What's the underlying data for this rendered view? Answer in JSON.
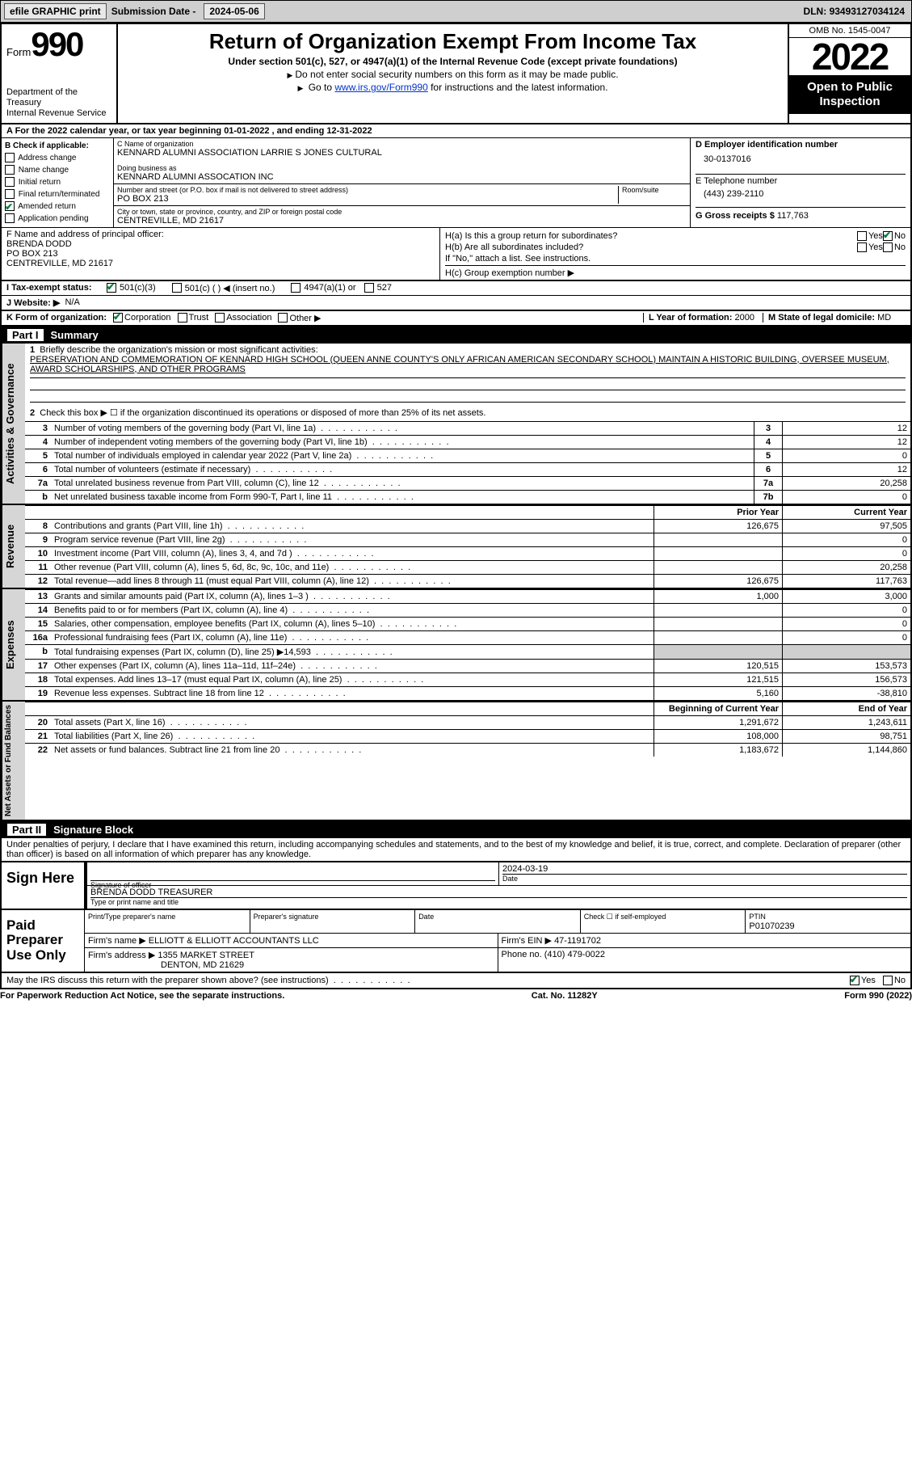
{
  "banner": {
    "efile": "efile GRAPHIC print",
    "sub_lbl": "Submission Date -",
    "sub_val": "2024-05-06",
    "dln_lbl": "DLN:",
    "dln_val": "93493127034124"
  },
  "header": {
    "form_lbl": "Form",
    "form_no": "990",
    "dept": "Department of the Treasury\nInternal Revenue Service",
    "title": "Return of Organization Exempt From Income Tax",
    "sub": "Under section 501(c), 527, or 4947(a)(1) of the Internal Revenue Code (except private foundations)",
    "line1": "Do not enter social security numbers on this form as it may be made public.",
    "line2_pre": "Go to ",
    "line2_link": "www.irs.gov/Form990",
    "line2_post": " for instructions and the latest information.",
    "omb": "OMB No. 1545-0047",
    "year": "2022",
    "pub": "Open to Public Inspection"
  },
  "lineA": "A For the 2022 calendar year, or tax year beginning 01-01-2022    , and ending 12-31-2022",
  "boxB": {
    "label": "B Check if applicable:",
    "items": [
      "Address change",
      "Name change",
      "Initial return",
      "Final return/terminated",
      "Amended return",
      "Application pending"
    ],
    "checked_idx": 4
  },
  "boxC": {
    "name_lbl": "C Name of organization",
    "name": "KENNARD ALUMNI ASSOCIATION LARRIE S JONES CULTURAL",
    "dba_lbl": "Doing business as",
    "dba": "KENNARD ALUMNI ASSOCATION INC",
    "street_lbl": "Number and street (or P.O. box if mail is not delivered to street address)",
    "room_lbl": "Room/suite",
    "street": "PO BOX 213",
    "city_lbl": "City or town, state or province, country, and ZIP or foreign postal code",
    "city": "CENTREVILLE, MD  21617"
  },
  "boxD": {
    "lbl": "D Employer identification number",
    "val": "30-0137016"
  },
  "boxE": {
    "lbl": "E Telephone number",
    "val": "(443) 239-2110"
  },
  "boxG": {
    "lbl": "G Gross receipts $",
    "val": "117,763"
  },
  "boxF": {
    "lbl": "F  Name and address of principal officer:",
    "name": "BRENDA DODD",
    "street": "PO BOX 213",
    "city": "CENTREVILLE, MD  21617"
  },
  "boxH": {
    "a_lbl": "H(a)  Is this a group return for subordinates?",
    "b_lbl": "H(b)  Are all subordinates included?",
    "b_note": "If \"No,\" attach a list. See instructions.",
    "c_lbl": "H(c)  Group exemption number ▶",
    "yes": "Yes",
    "no": "No"
  },
  "lineI": {
    "lbl": "I     Tax-exempt status:",
    "opts": [
      "501(c)(3)",
      "501(c) (  ) ◀ (insert no.)",
      "4947(a)(1) or",
      "527"
    ]
  },
  "lineJ": {
    "lbl": "J    Website: ▶",
    "val": "N/A"
  },
  "lineK": {
    "lbl": "K Form of organization:",
    "opts": [
      "Corporation",
      "Trust",
      "Association",
      "Other ▶"
    ]
  },
  "lineL": {
    "lbl": "L Year of formation:",
    "val": "2000"
  },
  "lineM": {
    "lbl": "M State of legal domicile:",
    "val": "MD"
  },
  "part1": {
    "hdr": "Part I",
    "title": "Summary"
  },
  "gov": {
    "side": "Activities & Governance",
    "l1_lbl": "Briefly describe the organization's mission or most significant activities:",
    "l1_txt": "PERSERVATION AND COMMEMORATION OF KENNARD HIGH SCHOOL (QUEEN ANNE COUNTY'S ONLY AFRICAN AMERICAN SECONDARY SCHOOL) MAINTAIN A HISTORIC BUILDING, OVERSEE MUSEUM, AWARD SCHOLARSHIPS, AND OTHER PROGRAMS",
    "l2": "Check this box ▶ ☐  if the organization discontinued its operations or disposed of more than 25% of its net assets.",
    "rows": [
      {
        "n": "3",
        "t": "Number of voting members of the governing body (Part VI, line 1a)",
        "box": "3",
        "v": "12"
      },
      {
        "n": "4",
        "t": "Number of independent voting members of the governing body (Part VI, line 1b)",
        "box": "4",
        "v": "12"
      },
      {
        "n": "5",
        "t": "Total number of individuals employed in calendar year 2022 (Part V, line 2a)",
        "box": "5",
        "v": "0"
      },
      {
        "n": "6",
        "t": "Total number of volunteers (estimate if necessary)",
        "box": "6",
        "v": "12"
      },
      {
        "n": "7a",
        "t": "Total unrelated business revenue from Part VIII, column (C), line 12",
        "box": "7a",
        "v": "20,258"
      },
      {
        "n": " b",
        "t": "Net unrelated business taxable income from Form 990-T, Part I, line 11",
        "box": "7b",
        "v": "0"
      }
    ]
  },
  "colhdrs": {
    "prior": "Prior Year",
    "curr": "Current Year",
    "begin": "Beginning of Current Year",
    "end": "End of Year"
  },
  "rev": {
    "side": "Revenue",
    "rows": [
      {
        "n": "8",
        "t": "Contributions and grants (Part VIII, line 1h)",
        "p": "126,675",
        "c": "97,505"
      },
      {
        "n": "9",
        "t": "Program service revenue (Part VIII, line 2g)",
        "p": "",
        "c": "0"
      },
      {
        "n": "10",
        "t": "Investment income (Part VIII, column (A), lines 3, 4, and 7d )",
        "p": "",
        "c": "0"
      },
      {
        "n": "11",
        "t": "Other revenue (Part VIII, column (A), lines 5, 6d, 8c, 9c, 10c, and 11e)",
        "p": "",
        "c": "20,258"
      },
      {
        "n": "12",
        "t": "Total revenue—add lines 8 through 11 (must equal Part VIII, column (A), line 12)",
        "p": "126,675",
        "c": "117,763"
      }
    ]
  },
  "exp": {
    "side": "Expenses",
    "rows": [
      {
        "n": "13",
        "t": "Grants and similar amounts paid (Part IX, column (A), lines 1–3 )",
        "p": "1,000",
        "c": "3,000"
      },
      {
        "n": "14",
        "t": "Benefits paid to or for members (Part IX, column (A), line 4)",
        "p": "",
        "c": "0"
      },
      {
        "n": "15",
        "t": "Salaries, other compensation, employee benefits (Part IX, column (A), lines 5–10)",
        "p": "",
        "c": "0"
      },
      {
        "n": "16a",
        "t": "Professional fundraising fees (Part IX, column (A), line 11e)",
        "p": "",
        "c": "0"
      },
      {
        "n": "b",
        "t": "Total fundraising expenses (Part IX, column (D), line 25) ▶14,593",
        "p": "GREY",
        "c": "GREY"
      },
      {
        "n": "17",
        "t": "Other expenses (Part IX, column (A), lines 11a–11d, 11f–24e)",
        "p": "120,515",
        "c": "153,573"
      },
      {
        "n": "18",
        "t": "Total expenses. Add lines 13–17 (must equal Part IX, column (A), line 25)",
        "p": "121,515",
        "c": "156,573"
      },
      {
        "n": "19",
        "t": "Revenue less expenses. Subtract line 18 from line 12",
        "p": "5,160",
        "c": "-38,810"
      }
    ]
  },
  "net": {
    "side": "Net Assets or Fund Balances",
    "rows": [
      {
        "n": "20",
        "t": "Total assets (Part X, line 16)",
        "p": "1,291,672",
        "c": "1,243,611"
      },
      {
        "n": "21",
        "t": "Total liabilities (Part X, line 26)",
        "p": "108,000",
        "c": "98,751"
      },
      {
        "n": "22",
        "t": "Net assets or fund balances. Subtract line 21 from line 20",
        "p": "1,183,672",
        "c": "1,144,860"
      }
    ]
  },
  "part2": {
    "hdr": "Part II",
    "title": "Signature Block"
  },
  "penalty": "Under penalties of perjury, I declare that I have examined this return, including accompanying schedules and statements, and to the best of my knowledge and belief, it is true, correct, and complete. Declaration of preparer (other than officer) is based on all information of which preparer has any knowledge.",
  "sign": {
    "lbl": "Sign Here",
    "sig_lbl": "Signature of officer",
    "date_lbl": "Date",
    "date": "2024-03-19",
    "name": "BRENDA DODD  TREASURER",
    "name_lbl": "Type or print name and title"
  },
  "paid": {
    "lbl": "Paid Preparer Use Only",
    "h1": "Print/Type preparer's name",
    "h2": "Preparer's signature",
    "h3": "Date",
    "h4": "Check ☐ if self-employed",
    "h5": "PTIN",
    "ptin": "P01070239",
    "firm_lbl": "Firm's name     ▶",
    "firm": "ELLIOTT & ELLIOTT ACCOUNTANTS LLC",
    "ein_lbl": "Firm's EIN ▶",
    "ein": "47-1191702",
    "addr_lbl": "Firm's address ▶",
    "addr": "1355 MARKET STREET",
    "addr2": "DENTON, MD  21629",
    "phone_lbl": "Phone no.",
    "phone": "(410) 479-0022"
  },
  "discuss": {
    "txt": "May the IRS discuss this return with the preparer shown above? (see instructions)",
    "yes": "Yes",
    "no": "No"
  },
  "footer": {
    "l": "For Paperwork Reduction Act Notice, see the separate instructions.",
    "c": "Cat. No. 11282Y",
    "r": "Form 990 (2022)"
  }
}
